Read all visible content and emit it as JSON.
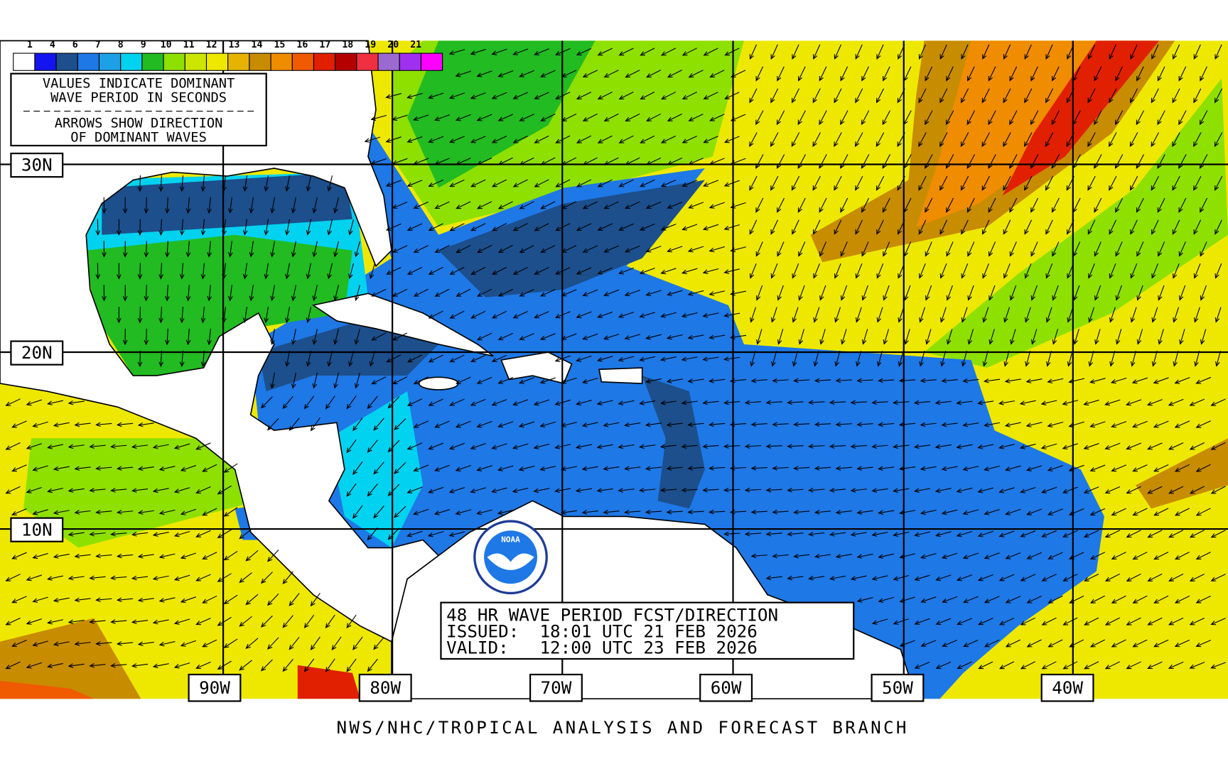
{
  "legend": {
    "labels": [
      1,
      4,
      6,
      7,
      8,
      9,
      10,
      11,
      12,
      13,
      14,
      15,
      16,
      17,
      18,
      19,
      20,
      21
    ],
    "colors": [
      "#ffffff",
      "#1414f0",
      "#1c4f8c",
      "#1e78e6",
      "#1ea0e6",
      "#00d2f0",
      "#22bb22",
      "#8ee000",
      "#cde600",
      "#eee800",
      "#e6b400",
      "#c88c00",
      "#f08c00",
      "#f05a00",
      "#e02000",
      "#b40000",
      "#ee3040",
      "#9a6ad0",
      "#a030f0",
      "#ff00ff"
    ]
  },
  "notes": [
    "VALUES INDICATE DOMINANT",
    "WAVE PERIOD IN SECONDS",
    "ARROWS SHOW DIRECTION",
    "OF DOMINANT WAVES"
  ],
  "latitude_labels": [
    "30N",
    "20N",
    "10N"
  ],
  "longitude_labels": [
    "90W",
    "80W",
    "70W",
    "60W",
    "50W",
    "40W"
  ],
  "forecast_box": [
    "48 HR WAVE PERIOD FCST/DIRECTION",
    "ISSUED:  18:01 UTC 21 FEB 2026",
    "VALID:   12:00 UTC 23 FEB 2026"
  ],
  "logo": "NOAA",
  "footer": "NWS/NHC/TROPICAL ANALYSIS AND FORECAST BRANCH"
}
